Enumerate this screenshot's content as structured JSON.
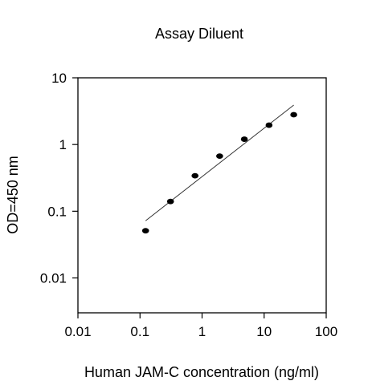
{
  "chart_data": {
    "type": "scatter",
    "title": "Assay Diluent",
    "xlabel": "Human JAM-C concentration (ng/ml)",
    "ylabel": "OD=450 nm",
    "x_scale": "log",
    "y_scale": "log",
    "xlim": [
      0.01,
      100
    ],
    "ylim": [
      0.003,
      10
    ],
    "x_ticks": [
      0.01,
      0.1,
      1,
      10,
      100
    ],
    "x_tick_labels": [
      "0.01",
      "0.1",
      "1",
      "10",
      "100"
    ],
    "y_ticks": [
      0.01,
      0.1,
      1,
      10
    ],
    "y_tick_labels": [
      "0.01",
      "0.1",
      "1",
      "10"
    ],
    "grid": false,
    "legend": "none",
    "colors": {
      "marker": "#000000",
      "fit_line": "#333333",
      "axis": "#000000"
    },
    "series": [
      {
        "x": [
          0.123,
          0.31,
          0.77,
          1.92,
          4.8,
          12,
          30
        ],
        "y": [
          0.051,
          0.14,
          0.34,
          0.67,
          1.2,
          1.95,
          2.8
        ]
      }
    ],
    "fit_line": {
      "x": [
        0.123,
        30
      ],
      "y": [
        0.072,
        3.9
      ]
    }
  }
}
